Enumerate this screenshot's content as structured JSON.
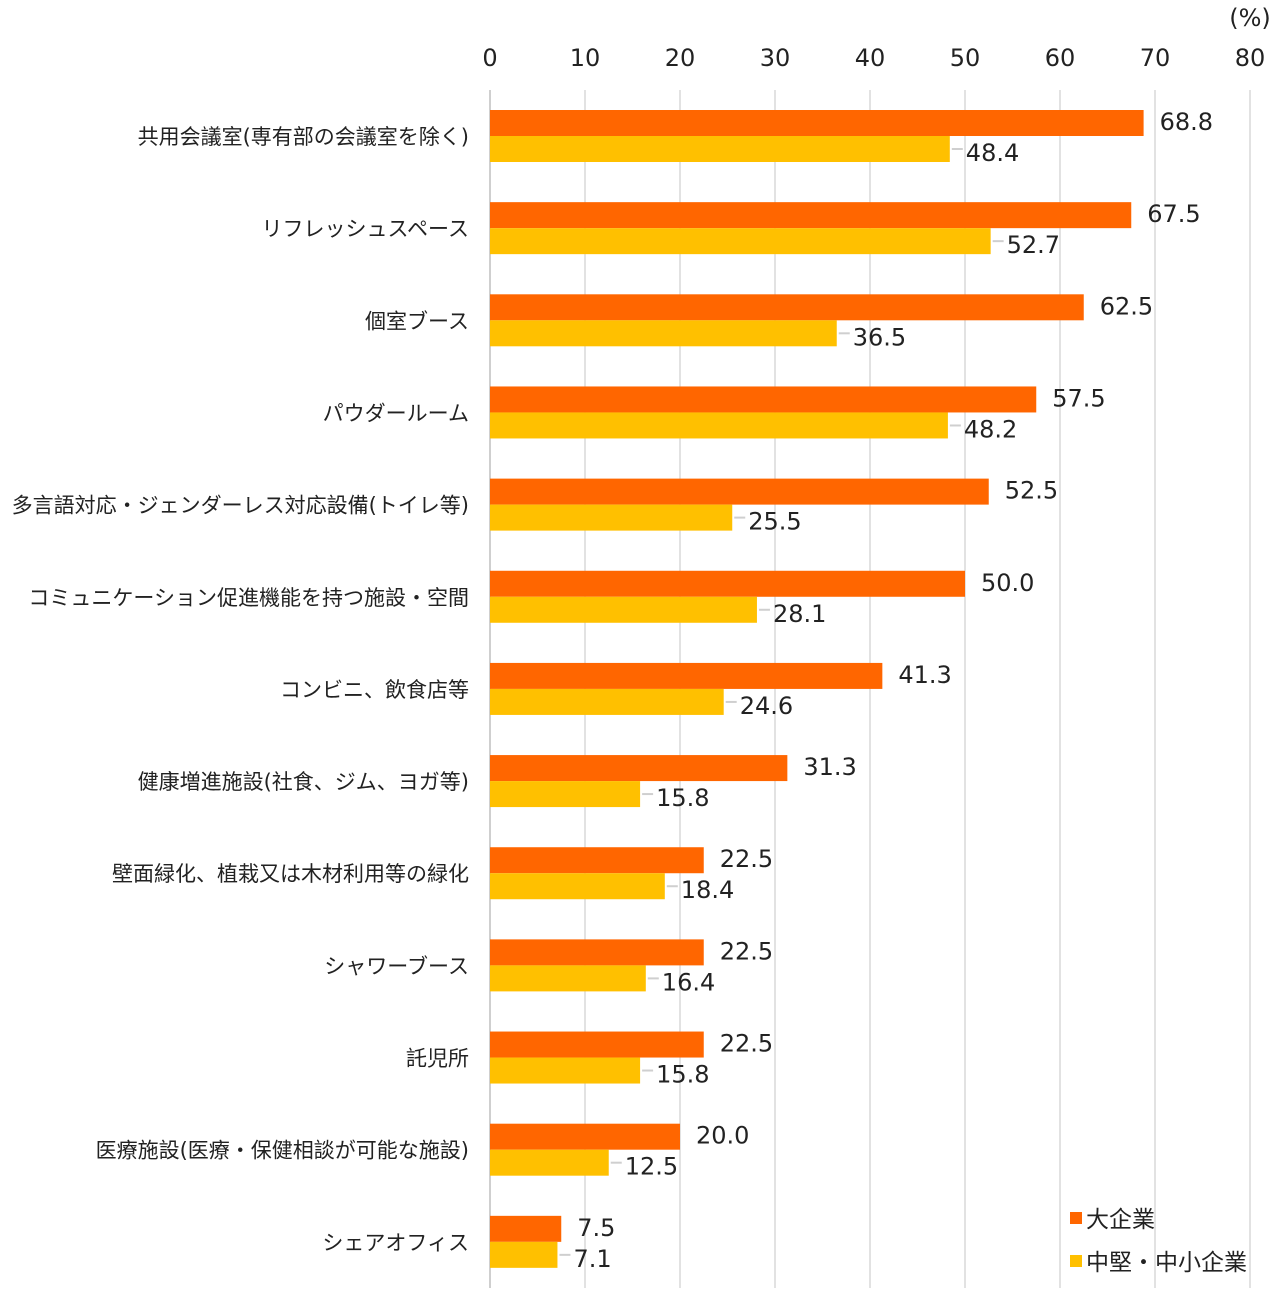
{
  "chart_data": {
    "type": "bar",
    "orientation": "horizontal",
    "unit_label": "(%)",
    "xlim": [
      0,
      80
    ],
    "xticks": [
      "0",
      "10",
      "20",
      "30",
      "40",
      "50",
      "60",
      "70",
      "80"
    ],
    "grid": "vertical",
    "legend_position": "bottom-right",
    "categories": [
      "共用会議室(専有部の会議室を除く)",
      "リフレッシュスペース",
      "個室ブース",
      "パウダールーム",
      "多言語対応・ジェンダーレス対応設備(トイレ等)",
      "コミュニケーション促進機能を持つ施設・空間",
      "コンビニ、飲食店等",
      "健康増進施設(社食、ジム、ヨガ等)",
      "壁面緑化、植栽又は木材利用等の緑化",
      "シャワーブース",
      "託児所",
      "医療施設(医療・保健相談が可能な施設)",
      "シェアオフィス"
    ],
    "series": [
      {
        "name": "大企業",
        "color": "#FF6600",
        "values": [
          68.8,
          67.5,
          62.5,
          57.5,
          52.5,
          50.0,
          41.3,
          31.3,
          22.5,
          22.5,
          22.5,
          20.0,
          7.5
        ],
        "labels": [
          "68.8",
          "67.5",
          "62.5",
          "57.5",
          "52.5",
          "50.0",
          "41.3",
          "31.3",
          "22.5",
          "22.5",
          "22.5",
          "20.0",
          "7.5"
        ]
      },
      {
        "name": "中堅・中小企業",
        "color": "#FFC000",
        "values": [
          48.4,
          52.7,
          36.5,
          48.2,
          25.5,
          28.1,
          24.6,
          15.8,
          18.4,
          16.4,
          15.8,
          12.5,
          7.1
        ],
        "labels": [
          "48.4",
          "52.7",
          "36.5",
          "48.2",
          "25.5",
          "28.1",
          "24.6",
          "15.8",
          "18.4",
          "16.4",
          "15.8",
          "12.5",
          "7.1"
        ]
      }
    ]
  }
}
